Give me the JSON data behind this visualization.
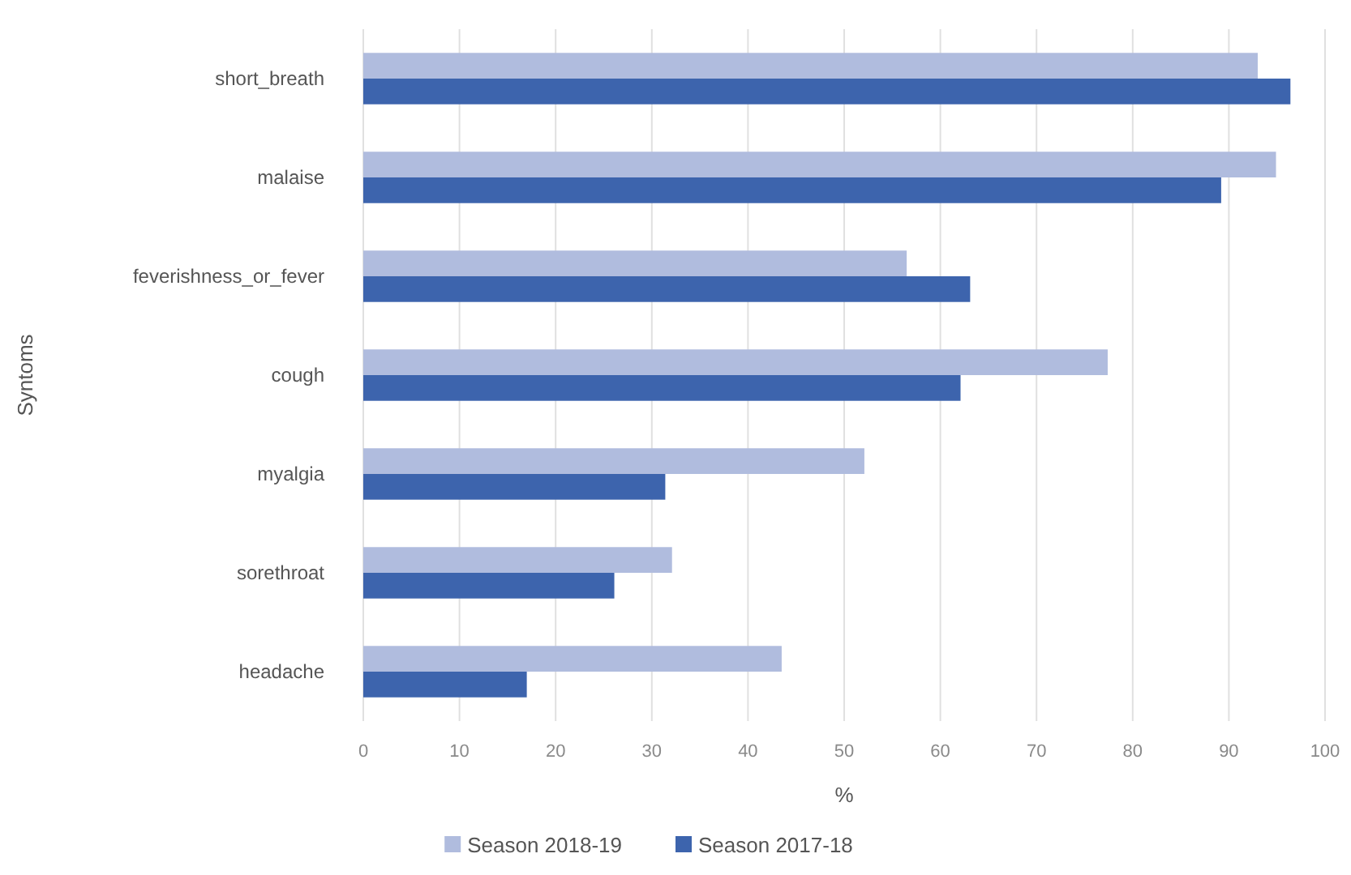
{
  "chart_data": {
    "type": "bar",
    "orientation": "horizontal",
    "xlabel": "%",
    "ylabel": "Syntoms",
    "categories": [
      "short_breath",
      "malaise",
      "feverishness_or_fever",
      "cough",
      "myalgia",
      "sorethroat",
      "headache"
    ],
    "series": [
      {
        "name": "Season 2018-19",
        "color": "#b0bcde",
        "values": [
          93,
          94.9,
          56.5,
          77.4,
          52.1,
          32.1,
          43.5
        ]
      },
      {
        "name": "Season 2017-18",
        "color": "#3d64ad",
        "values": [
          96.4,
          89.2,
          63.1,
          62.1,
          31.4,
          26.1,
          17
        ]
      }
    ],
    "xlim": [
      0,
      100
    ],
    "xticks": [
      0,
      10,
      20,
      30,
      40,
      50,
      60,
      70,
      80,
      90,
      100
    ],
    "grid": "x",
    "legend": "bottom"
  }
}
